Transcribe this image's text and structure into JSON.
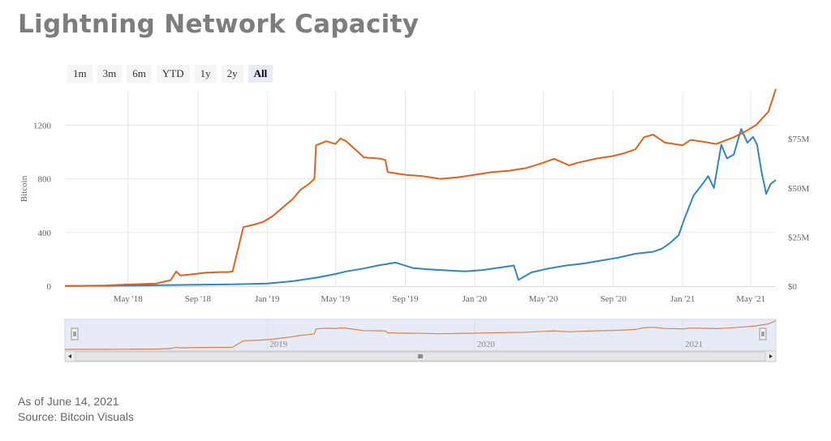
{
  "title": "Lightning Network Capacity",
  "range_buttons": [
    "1m",
    "3m",
    "6m",
    "YTD",
    "1y",
    "2y",
    "All"
  ],
  "active_range": "All",
  "footer": {
    "as_of": "As of June 14, 2021",
    "source": "Source: Bitcoin Visuals"
  },
  "colors": {
    "bitcoin_series": "#e2611b",
    "usd_series": "#2f86c0",
    "navigator_line": "#e08050",
    "navigator_fill": "#e6ebf5",
    "grid": "#e6e6e6"
  },
  "chart_data": {
    "type": "line",
    "ylabel": "Bitcoin",
    "y_ticks": [
      0,
      400,
      800,
      1200
    ],
    "ylim": [
      0,
      1450
    ],
    "y2_ticks": [
      "$0",
      "$25M",
      "$50M",
      "$75M"
    ],
    "y2_values": [
      0,
      25000000,
      50000000,
      75000000
    ],
    "y2lim": [
      0,
      99000000
    ],
    "x_ticks": [
      "May '18",
      "Sep '18",
      "Jan '19",
      "May '19",
      "Sep '19",
      "Jan '20",
      "May '20",
      "Sep '20",
      "Jan '21",
      "May '21"
    ],
    "x_tick_dates": [
      "2018-05-01",
      "2018-09-01",
      "2019-01-01",
      "2019-05-01",
      "2019-09-01",
      "2020-01-01",
      "2020-05-01",
      "2020-09-01",
      "2021-01-01",
      "2021-05-01"
    ],
    "xlim": [
      "2018-01-10",
      "2021-06-14"
    ],
    "navigator_labels": [
      "2019",
      "2020",
      "2021"
    ],
    "navigator_label_dates": [
      "2019-01-01",
      "2020-01-01",
      "2021-01-01"
    ],
    "series": [
      {
        "axis": "left",
        "x": [
          "2018-01-10",
          "2018-02-15",
          "2018-03-20",
          "2018-04-20",
          "2018-05-20",
          "2018-06-20",
          "2018-07-15",
          "2018-07-25",
          "2018-08-01",
          "2018-08-15",
          "2018-09-15",
          "2018-10-10",
          "2018-10-25",
          "2018-11-01",
          "2018-11-20",
          "2018-12-10",
          "2018-12-25",
          "2019-01-10",
          "2019-02-01",
          "2019-02-15",
          "2019-03-01",
          "2019-03-15",
          "2019-03-25",
          "2019-03-28",
          "2019-04-15",
          "2019-05-01",
          "2019-05-10",
          "2019-05-20",
          "2019-06-10",
          "2019-06-20",
          "2019-07-20",
          "2019-07-28",
          "2019-08-01",
          "2019-09-01",
          "2019-10-01",
          "2019-11-01",
          "2019-12-01",
          "2020-01-01",
          "2020-02-01",
          "2020-03-01",
          "2020-04-01",
          "2020-05-01",
          "2020-05-20",
          "2020-06-15",
          "2020-07-01",
          "2020-08-01",
          "2020-09-01",
          "2020-09-20",
          "2020-10-10",
          "2020-10-25",
          "2020-11-10",
          "2020-12-01",
          "2021-01-01",
          "2021-01-15",
          "2021-02-01",
          "2021-03-01",
          "2021-04-01",
          "2021-04-20",
          "2021-05-10",
          "2021-06-01",
          "2021-06-14"
        ],
        "values": [
          2,
          3,
          5,
          10,
          15,
          20,
          45,
          110,
          80,
          85,
          100,
          105,
          105,
          110,
          440,
          460,
          480,
          520,
          600,
          650,
          720,
          760,
          800,
          1050,
          1080,
          1060,
          1100,
          1080,
          1000,
          960,
          950,
          940,
          850,
          830,
          820,
          800,
          810,
          830,
          850,
          860,
          880,
          920,
          950,
          900,
          920,
          950,
          970,
          990,
          1020,
          1110,
          1130,
          1070,
          1050,
          1090,
          1080,
          1060,
          1110,
          1150,
          1200,
          1300,
          1470
        ]
      },
      {
        "axis": "right",
        "x": [
          "2018-01-10",
          "2018-03-01",
          "2018-05-01",
          "2018-07-01",
          "2018-09-01",
          "2018-11-01",
          "2019-01-01",
          "2019-02-15",
          "2019-04-01",
          "2019-05-01",
          "2019-05-20",
          "2019-06-20",
          "2019-07-15",
          "2019-08-15",
          "2019-09-15",
          "2019-10-15",
          "2019-11-15",
          "2019-12-15",
          "2020-01-15",
          "2020-02-15",
          "2020-03-10",
          "2020-03-18",
          "2020-04-10",
          "2020-05-10",
          "2020-06-10",
          "2020-07-10",
          "2020-08-10",
          "2020-09-10",
          "2020-10-10",
          "2020-11-10",
          "2020-11-25",
          "2020-12-10",
          "2020-12-25",
          "2021-01-05",
          "2021-01-20",
          "2021-02-05",
          "2021-02-15",
          "2021-02-25",
          "2021-03-10",
          "2021-03-20",
          "2021-04-01",
          "2021-04-14",
          "2021-04-25",
          "2021-05-05",
          "2021-05-12",
          "2021-05-20",
          "2021-05-28",
          "2021-06-05",
          "2021-06-14"
        ],
        "values": [
          100000,
          200000,
          300000,
          500000,
          700000,
          900000,
          1300000,
          2500000,
          4500000,
          6200000,
          7500000,
          9000000,
          10500000,
          12000000,
          9200000,
          8500000,
          8000000,
          7500000,
          8200000,
          9500000,
          10500000,
          3200000,
          7000000,
          9000000,
          10500000,
          11500000,
          13000000,
          14500000,
          16500000,
          17500000,
          19000000,
          22000000,
          26000000,
          35000000,
          46000000,
          52000000,
          56000000,
          50000000,
          72000000,
          65000000,
          67000000,
          80000000,
          73000000,
          76000000,
          72000000,
          58000000,
          47000000,
          52000000,
          54000000
        ]
      }
    ]
  }
}
